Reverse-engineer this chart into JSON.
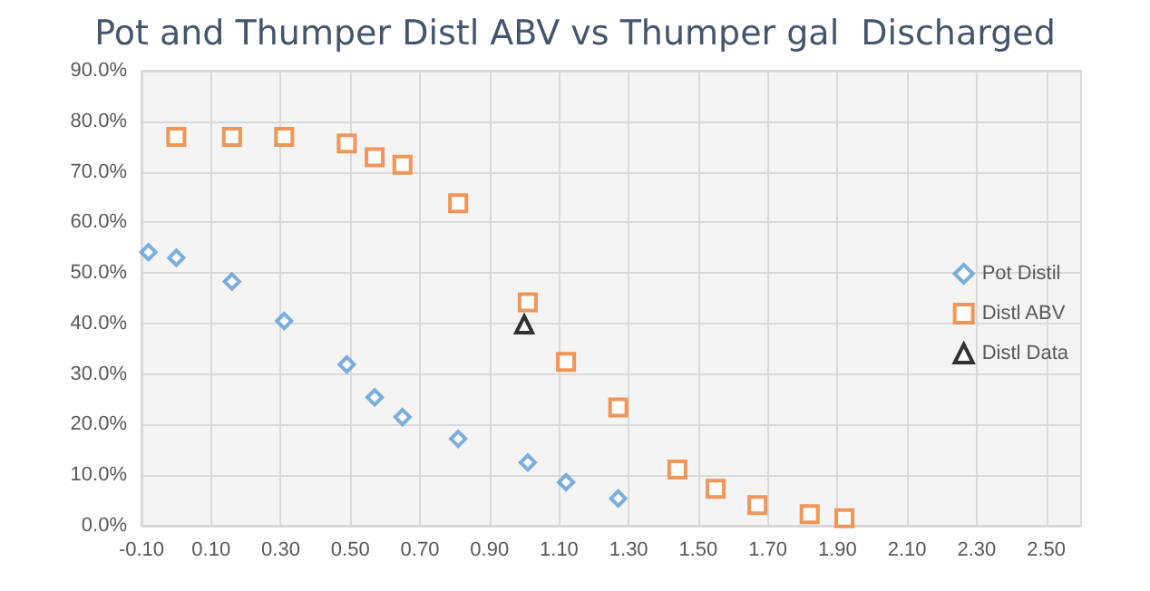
{
  "chart_data": {
    "type": "scatter",
    "title": "Pot and Thumper Distl ABV vs Thumper gal  Discharged",
    "xlim": [
      -0.1,
      2.6
    ],
    "xticks": [
      {
        "value": -0.1,
        "label": "-0.10"
      },
      {
        "value": 0.1,
        "label": "0.10"
      },
      {
        "value": 0.3,
        "label": "0.30"
      },
      {
        "value": 0.5,
        "label": "0.50"
      },
      {
        "value": 0.7,
        "label": "0.70"
      },
      {
        "value": 0.9,
        "label": "0.90"
      },
      {
        "value": 1.1,
        "label": "1.10"
      },
      {
        "value": 1.3,
        "label": "1.30"
      },
      {
        "value": 1.5,
        "label": "1.50"
      },
      {
        "value": 1.7,
        "label": "1.70"
      },
      {
        "value": 1.9,
        "label": "1.90"
      },
      {
        "value": 2.1,
        "label": "2.10"
      },
      {
        "value": 2.3,
        "label": "2.30"
      },
      {
        "value": 2.5,
        "label": "2.50"
      }
    ],
    "ylim": [
      0,
      90
    ],
    "yticks": [
      {
        "value": 0,
        "label": "0.0%"
      },
      {
        "value": 10,
        "label": "10.0%"
      },
      {
        "value": 20,
        "label": "20.0%"
      },
      {
        "value": 30,
        "label": "30.0%"
      },
      {
        "value": 40,
        "label": "40.0%"
      },
      {
        "value": 50,
        "label": "50.0%"
      },
      {
        "value": 60,
        "label": "60.0%"
      },
      {
        "value": 70,
        "label": "70.0%"
      },
      {
        "value": 80,
        "label": "80.0%"
      },
      {
        "value": 90,
        "label": "90.0%"
      }
    ],
    "grid": true,
    "legend": "right",
    "series": [
      {
        "name": "Pot Distil",
        "color": "#5b9bd5",
        "marker": "diamond",
        "x": [
          -0.08,
          0.0,
          0.16,
          0.31,
          0.49,
          0.57,
          0.65,
          0.81,
          1.01,
          1.12,
          1.27
        ],
        "values": [
          54.1,
          53.0,
          48.3,
          40.5,
          31.9,
          25.4,
          21.5,
          17.2,
          12.5,
          8.6,
          5.4
        ]
      },
      {
        "name": "Distl ABV",
        "color": "#ed7d31",
        "marker": "square",
        "x": [
          0.0,
          0.16,
          0.31,
          0.49,
          0.57,
          0.65,
          0.81,
          1.01,
          1.12,
          1.27,
          1.44,
          1.55,
          1.67,
          1.82,
          1.92
        ],
        "values": [
          76.9,
          76.9,
          76.9,
          75.6,
          72.9,
          71.4,
          63.8,
          44.2,
          32.4,
          23.4,
          11.1,
          7.3,
          4.1,
          2.3,
          1.5
        ]
      },
      {
        "name": "Distl Data",
        "color": "#000000",
        "marker": "triangle",
        "x": [
          1.0
        ],
        "values": [
          39.8
        ]
      }
    ]
  }
}
